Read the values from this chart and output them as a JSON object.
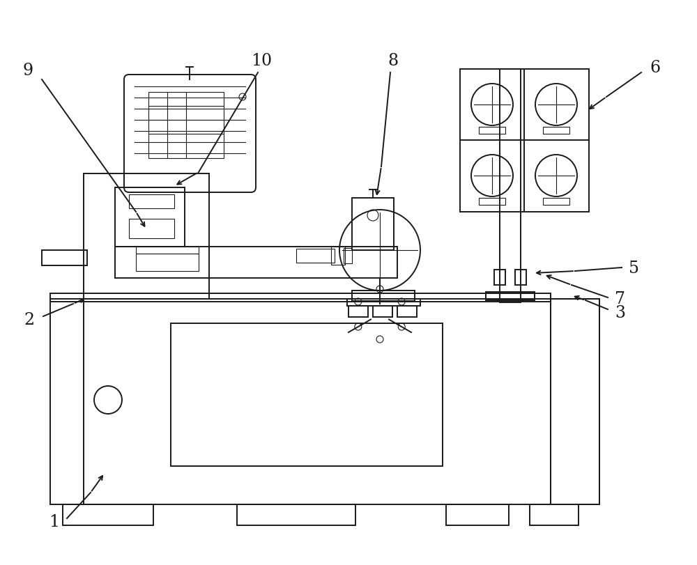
{
  "bg_color": "#ffffff",
  "lc": "#1a1a1a",
  "lw": 1.4,
  "tlw": 0.8,
  "fig_width": 10.0,
  "fig_height": 8.12,
  "dpi": 100
}
